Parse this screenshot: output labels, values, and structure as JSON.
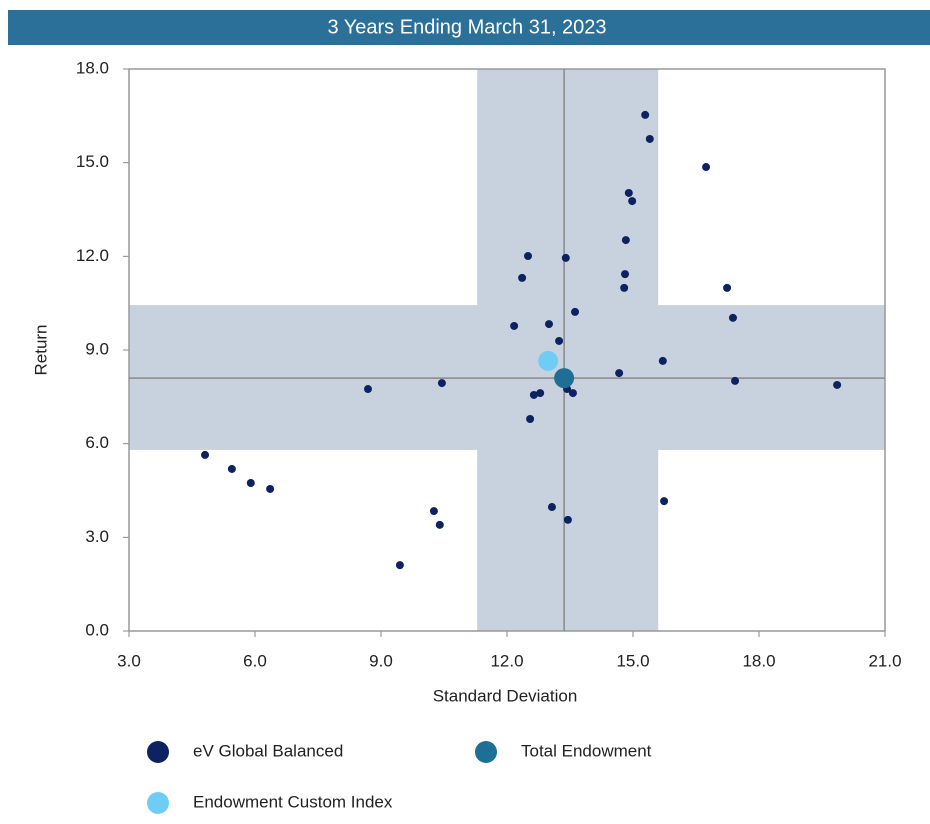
{
  "chart_data": {
    "type": "scatter",
    "title": "3 Years Ending March 31, 2023",
    "x_label": "Standard Deviation",
    "y_label": "Return",
    "xlim": [
      3,
      21
    ],
    "ylim": [
      0,
      18
    ],
    "xticks": [
      {
        "value": 3,
        "label": "3.0"
      },
      {
        "value": 6,
        "label": "6.0"
      },
      {
        "value": 9,
        "label": "9.0"
      },
      {
        "value": 12,
        "label": "12.0"
      },
      {
        "value": 15,
        "label": "15.0"
      },
      {
        "value": 18,
        "label": "18.0"
      },
      {
        "value": 21,
        "label": "21.0"
      }
    ],
    "yticks": [
      {
        "value": 0,
        "label": "0.0"
      },
      {
        "value": 3,
        "label": "3.0"
      },
      {
        "value": 6,
        "label": "6.0"
      },
      {
        "value": 9,
        "label": "9.0"
      },
      {
        "value": 12,
        "label": "12.0"
      },
      {
        "value": 15,
        "label": "15.0"
      },
      {
        "value": 18,
        "label": "18.0"
      }
    ],
    "bands": {
      "x": [
        11.29,
        15.6
      ],
      "y": [
        5.8,
        10.44
      ],
      "color": "#c8d2de"
    },
    "series": [
      {
        "name": "eV Global Balanced",
        "color": "#0d2260",
        "size": 4,
        "x": [
          15.29,
          15.4,
          16.74,
          14.9,
          14.98,
          14.83,
          12.5,
          13.4,
          14.81,
          12.36,
          14.79,
          17.24,
          13.62,
          17.38,
          12.17,
          13.0,
          13.24,
          15.71,
          14.67,
          17.43,
          19.86,
          10.45,
          8.69,
          13.43,
          13.57,
          12.79,
          12.64,
          12.55,
          4.81,
          5.45,
          5.9,
          6.36,
          15.74,
          10.26,
          10.4,
          13.07,
          13.45,
          9.45
        ],
        "values": [
          16.53,
          15.76,
          14.86,
          14.03,
          13.77,
          12.52,
          12.01,
          11.95,
          11.43,
          11.31,
          10.99,
          10.99,
          10.22,
          10.03,
          9.77,
          9.83,
          9.29,
          8.65,
          8.26,
          8.01,
          7.88,
          7.94,
          7.75,
          7.75,
          7.62,
          7.62,
          7.56,
          6.79,
          5.64,
          5.19,
          4.74,
          4.55,
          4.16,
          3.84,
          3.4,
          3.97,
          3.56,
          2.11
        ]
      },
      {
        "name": "Total Endowment",
        "color": "#1e6f96",
        "size": 10,
        "x": [
          13.36
        ],
        "values": [
          8.1
        ]
      },
      {
        "name": "Endowment Custom Index",
        "color": "#6fcdf5",
        "size": 10,
        "x": [
          12.98
        ],
        "values": [
          8.65
        ]
      }
    ]
  }
}
